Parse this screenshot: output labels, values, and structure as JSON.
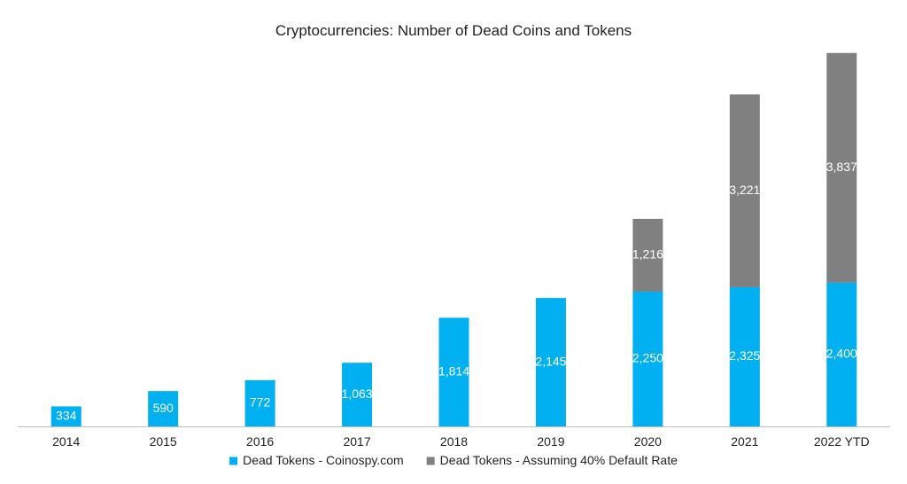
{
  "chart_data": {
    "type": "bar",
    "stacked": true,
    "title": "Cryptocurrencies: Number of Dead Coins and Tokens",
    "categories": [
      "2014",
      "2015",
      "2016",
      "2017",
      "2018",
      "2019",
      "2020",
      "2021",
      "2022 YTD"
    ],
    "series": [
      {
        "name": "Dead Tokens - Coinospy.com",
        "color": "#00b0f0",
        "values": [
          334,
          590,
          772,
          1063,
          1814,
          2145,
          2250,
          2325,
          2400
        ],
        "labels": [
          "334",
          "590",
          "772",
          "1,063",
          "1,814",
          "2,145",
          "2,250",
          "2,325",
          "2,400"
        ]
      },
      {
        "name": "Dead Tokens - Assuming 40% Default Rate",
        "color": "#808080",
        "values": [
          null,
          null,
          null,
          null,
          null,
          null,
          1216,
          3221,
          3837
        ],
        "labels": [
          null,
          null,
          null,
          null,
          null,
          null,
          "1,216",
          "3,221",
          "3,837"
        ]
      }
    ],
    "ylim": [
      0,
      6500
    ],
    "grid": false,
    "legend": "bottom"
  }
}
